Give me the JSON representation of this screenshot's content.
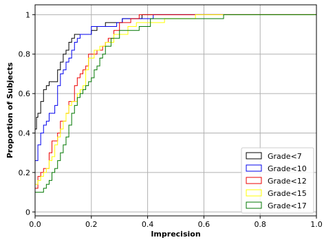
{
  "chart_data": {
    "type": "line",
    "step": true,
    "title": "",
    "xlabel": "Imprecision",
    "ylabel": "Proportion of Subjects",
    "xlim": [
      0.0,
      1.0
    ],
    "ylim": [
      -0.02,
      1.05
    ],
    "xticks": [
      "0.0",
      "0.2",
      "0.4",
      "0.6",
      "0.8",
      "1.0"
    ],
    "yticks": [
      "0",
      "0.2",
      "0.4",
      "0.6",
      "0.8",
      "1"
    ],
    "grid": true,
    "legend_position": "bottom-right",
    "series": [
      {
        "name": "Grade<7",
        "color": "#000000",
        "x": [
          0.0,
          0.005,
          0.01,
          0.02,
          0.03,
          0.04,
          0.05,
          0.06,
          0.08,
          0.09,
          0.1,
          0.11,
          0.12,
          0.13,
          0.14,
          0.15,
          0.17,
          0.2,
          0.22,
          0.25,
          0.31,
          0.35,
          0.38,
          1.0
        ],
        "y": [
          0.42,
          0.48,
          0.5,
          0.56,
          0.62,
          0.64,
          0.66,
          0.66,
          0.72,
          0.76,
          0.8,
          0.82,
          0.86,
          0.88,
          0.9,
          0.9,
          0.9,
          0.92,
          0.94,
          0.96,
          0.98,
          0.98,
          1.0,
          1.0
        ]
      },
      {
        "name": "Grade<10",
        "color": "#0000ee",
        "x": [
          0.0,
          0.01,
          0.02,
          0.03,
          0.04,
          0.05,
          0.07,
          0.08,
          0.09,
          0.1,
          0.11,
          0.12,
          0.13,
          0.14,
          0.15,
          0.16,
          0.2,
          0.29,
          0.31,
          0.36,
          0.42,
          1.0
        ],
        "y": [
          0.26,
          0.34,
          0.4,
          0.44,
          0.46,
          0.5,
          0.54,
          0.64,
          0.7,
          0.72,
          0.76,
          0.78,
          0.82,
          0.86,
          0.88,
          0.9,
          0.94,
          0.96,
          0.98,
          0.98,
          1.0,
          1.0
        ]
      },
      {
        "name": "Grade<12",
        "color": "#ee0000",
        "x": [
          0.0,
          0.01,
          0.02,
          0.03,
          0.05,
          0.06,
          0.08,
          0.09,
          0.11,
          0.12,
          0.14,
          0.15,
          0.16,
          0.17,
          0.18,
          0.19,
          0.22,
          0.24,
          0.25,
          0.26,
          0.28,
          0.3,
          0.34,
          0.37,
          1.0
        ],
        "y": [
          0.12,
          0.18,
          0.2,
          0.22,
          0.3,
          0.36,
          0.4,
          0.46,
          0.5,
          0.56,
          0.64,
          0.68,
          0.7,
          0.72,
          0.74,
          0.8,
          0.82,
          0.84,
          0.86,
          0.88,
          0.92,
          0.96,
          0.98,
          1.0,
          1.0
        ]
      },
      {
        "name": "Grade<15",
        "color": "#ffff00",
        "x": [
          0.0,
          0.01,
          0.02,
          0.03,
          0.04,
          0.05,
          0.06,
          0.07,
          0.08,
          0.09,
          0.1,
          0.11,
          0.12,
          0.13,
          0.15,
          0.16,
          0.17,
          0.18,
          0.19,
          0.21,
          0.23,
          0.25,
          0.28,
          0.33,
          0.36,
          0.46,
          0.57,
          1.0
        ],
        "y": [
          0.14,
          0.16,
          0.18,
          0.2,
          0.22,
          0.26,
          0.28,
          0.34,
          0.38,
          0.42,
          0.46,
          0.5,
          0.54,
          0.56,
          0.6,
          0.62,
          0.64,
          0.72,
          0.78,
          0.82,
          0.84,
          0.86,
          0.9,
          0.94,
          0.96,
          0.98,
          1.0,
          1.0
        ]
      },
      {
        "name": "Grade<17",
        "color": "#007700",
        "x": [
          0.0,
          0.03,
          0.04,
          0.05,
          0.06,
          0.07,
          0.08,
          0.09,
          0.1,
          0.11,
          0.12,
          0.13,
          0.14,
          0.15,
          0.16,
          0.17,
          0.18,
          0.19,
          0.2,
          0.21,
          0.22,
          0.23,
          0.24,
          0.25,
          0.27,
          0.3,
          0.37,
          0.41,
          0.67,
          1.0
        ],
        "y": [
          0.1,
          0.12,
          0.14,
          0.16,
          0.2,
          0.22,
          0.26,
          0.3,
          0.34,
          0.38,
          0.44,
          0.5,
          0.54,
          0.58,
          0.6,
          0.62,
          0.64,
          0.66,
          0.68,
          0.72,
          0.74,
          0.78,
          0.8,
          0.84,
          0.88,
          0.92,
          0.94,
          0.98,
          1.0,
          1.0
        ]
      }
    ]
  }
}
